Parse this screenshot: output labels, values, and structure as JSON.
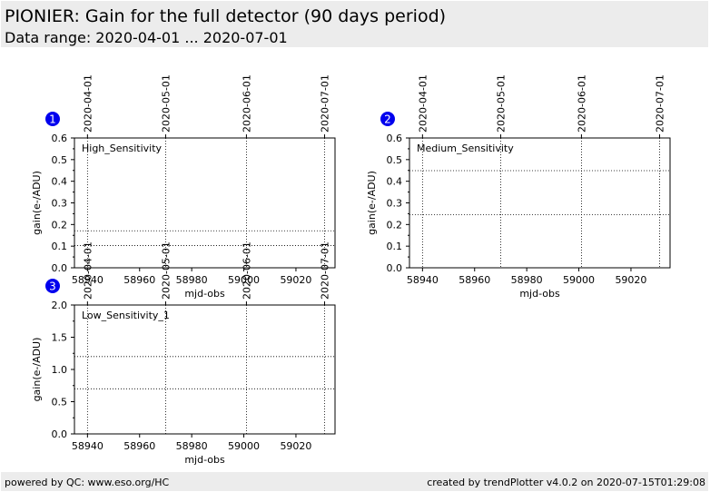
{
  "header": {
    "title": "PIONIER: Gain for the full detector (90 days period)",
    "subtitle": "Data range: 2020-04-01 ... 2020-07-01"
  },
  "footer": {
    "left": "powered by QC: www.eso.org/HC",
    "right": "created by trendPlotter v4.0.2 on 2020-07-15T01:29:08"
  },
  "colors": {
    "badge": "#0000ee",
    "panel_bg": "#ececec"
  },
  "chart_data": [
    {
      "type": "line",
      "badge": "1",
      "label": "High_Sensitivity",
      "xlabel": "mjd-obs",
      "ylabel": "gain(e-/ADU)",
      "xlim": [
        58935,
        59035
      ],
      "ylim": [
        0,
        0.6
      ],
      "x_ticks": [
        58940,
        58960,
        58980,
        59000,
        59020
      ],
      "y_ticks": [
        0.0,
        0.1,
        0.2,
        0.3,
        0.4,
        0.5,
        0.6
      ],
      "y_tick_labels": [
        "0.0",
        "0.1",
        "0.2",
        "0.3",
        "0.4",
        "0.5",
        "0.6"
      ],
      "date_ticks": [
        {
          "mjd": 58940,
          "label": "2020-04-01"
        },
        {
          "mjd": 58970,
          "label": "2020-05-01"
        },
        {
          "mjd": 59001,
          "label": "2020-06-01"
        },
        {
          "mjd": 59031,
          "label": "2020-07-01"
        }
      ],
      "reference_lines": [
        0.103,
        0.171
      ],
      "series": []
    },
    {
      "type": "line",
      "badge": "2",
      "label": "Medium_Sensitivity",
      "xlabel": "mjd-obs",
      "ylabel": "gain(e-/ADU)",
      "xlim": [
        58935,
        59035
      ],
      "ylim": [
        0,
        0.6
      ],
      "x_ticks": [
        58940,
        58960,
        58980,
        59000,
        59020
      ],
      "y_ticks": [
        0.0,
        0.1,
        0.2,
        0.3,
        0.4,
        0.5,
        0.6
      ],
      "y_tick_labels": [
        "0.0",
        "0.1",
        "0.2",
        "0.3",
        "0.4",
        "0.5",
        "0.6"
      ],
      "date_ticks": [
        {
          "mjd": 58940,
          "label": "2020-04-01"
        },
        {
          "mjd": 58970,
          "label": "2020-05-01"
        },
        {
          "mjd": 59001,
          "label": "2020-06-01"
        },
        {
          "mjd": 59031,
          "label": "2020-07-01"
        }
      ],
      "reference_lines": [
        0.246,
        0.449
      ],
      "series": []
    },
    {
      "type": "line",
      "badge": "3",
      "label": "Low_Sensitivity_1",
      "xlabel": "mjd-obs",
      "ylabel": "gain(e-/ADU)",
      "xlim": [
        58935,
        59035
      ],
      "ylim": [
        0,
        2.0
      ],
      "x_ticks": [
        58940,
        58960,
        58980,
        59000,
        59020
      ],
      "y_ticks": [
        0.0,
        0.5,
        1.0,
        1.5,
        2.0
      ],
      "y_tick_labels": [
        "0.0",
        "0.5",
        "1.0",
        "1.5",
        "2.0"
      ],
      "date_ticks": [
        {
          "mjd": 58940,
          "label": "2020-04-01"
        },
        {
          "mjd": 58970,
          "label": "2020-05-01"
        },
        {
          "mjd": 59001,
          "label": "2020-06-01"
        },
        {
          "mjd": 59031,
          "label": "2020-07-01"
        }
      ],
      "reference_lines": [
        0.7,
        1.2
      ],
      "series": []
    }
  ]
}
